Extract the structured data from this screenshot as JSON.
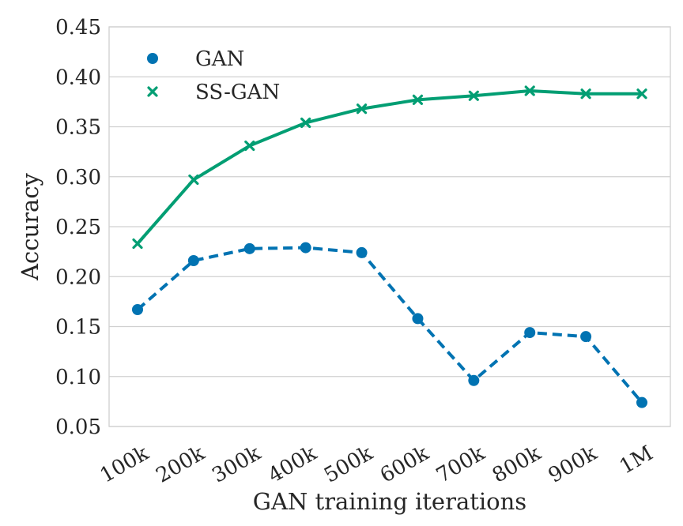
{
  "chart_data": {
    "type": "line",
    "title": "",
    "xlabel": "GAN training iterations",
    "ylabel": "Accuracy",
    "categories": [
      "100k",
      "200k",
      "300k",
      "400k",
      "500k",
      "600k",
      "700k",
      "800k",
      "900k",
      "1M"
    ],
    "ylim": [
      0.05,
      0.45
    ],
    "yticks": [
      0.05,
      0.1,
      0.15,
      0.2,
      0.25,
      0.3,
      0.35,
      0.4,
      0.45
    ],
    "ytick_labels": [
      "0.05",
      "0.10",
      "0.15",
      "0.20",
      "0.25",
      "0.30",
      "0.35",
      "0.40",
      "0.45"
    ],
    "grid": "horizontal",
    "legend_position": "top-left",
    "series": [
      {
        "name": "GAN",
        "marker": "circle",
        "linestyle": "dashed",
        "color": "#0173b2",
        "values": [
          0.167,
          0.216,
          0.228,
          0.229,
          0.224,
          0.158,
          0.096,
          0.144,
          0.14,
          0.074
        ]
      },
      {
        "name": "SS-GAN",
        "marker": "x",
        "linestyle": "solid",
        "color": "#029e73",
        "values": [
          0.233,
          0.297,
          0.331,
          0.354,
          0.368,
          0.377,
          0.381,
          0.386,
          0.383,
          0.383
        ]
      }
    ]
  }
}
